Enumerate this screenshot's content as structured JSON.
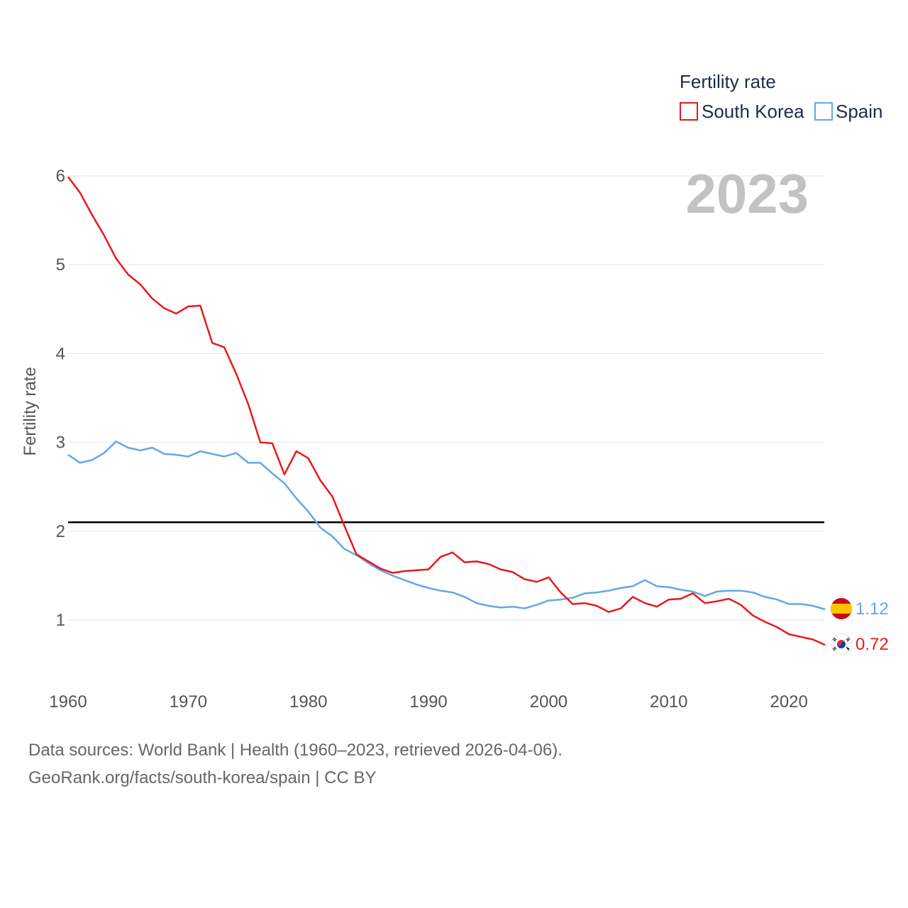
{
  "chart_data": {
    "type": "line",
    "legend_title": "Fertility rate",
    "ylabel": "Fertility rate",
    "year_label": "2023",
    "xlim": [
      1960,
      2023
    ],
    "ylim": [
      0.5,
      6.0
    ],
    "x_ticks": [
      1960,
      1970,
      1980,
      1990,
      2000,
      2010,
      2020
    ],
    "y_ticks": [
      1,
      2,
      3,
      4,
      5,
      6
    ],
    "reference_line": {
      "y": 2.1,
      "color": "#000000"
    },
    "x": [
      1960,
      1961,
      1962,
      1963,
      1964,
      1965,
      1966,
      1967,
      1968,
      1969,
      1970,
      1971,
      1972,
      1973,
      1974,
      1975,
      1976,
      1977,
      1978,
      1979,
      1980,
      1981,
      1982,
      1983,
      1984,
      1985,
      1986,
      1987,
      1988,
      1989,
      1990,
      1991,
      1992,
      1993,
      1994,
      1995,
      1996,
      1997,
      1998,
      1999,
      2000,
      2001,
      2002,
      2003,
      2004,
      2005,
      2006,
      2007,
      2008,
      2009,
      2010,
      2011,
      2012,
      2013,
      2014,
      2015,
      2016,
      2017,
      2018,
      2019,
      2020,
      2021,
      2022,
      2023
    ],
    "series": [
      {
        "name": "South Korea",
        "color": "#e8191c",
        "end_label": "0.72",
        "values": [
          5.99,
          5.81,
          5.56,
          5.33,
          5.07,
          4.89,
          4.78,
          4.62,
          4.51,
          4.45,
          4.53,
          4.54,
          4.12,
          4.07,
          3.77,
          3.43,
          3.0,
          2.99,
          2.64,
          2.9,
          2.82,
          2.57,
          2.39,
          2.06,
          1.74,
          1.66,
          1.58,
          1.53,
          1.55,
          1.56,
          1.57,
          1.71,
          1.76,
          1.65,
          1.66,
          1.63,
          1.57,
          1.54,
          1.46,
          1.43,
          1.48,
          1.31,
          1.18,
          1.19,
          1.16,
          1.09,
          1.13,
          1.26,
          1.19,
          1.15,
          1.23,
          1.24,
          1.3,
          1.19,
          1.21,
          1.24,
          1.17,
          1.05,
          0.98,
          0.92,
          0.84,
          0.81,
          0.78,
          0.72
        ]
      },
      {
        "name": "Spain",
        "color": "#63a7e8",
        "end_label": "1.12",
        "values": [
          2.86,
          2.77,
          2.8,
          2.88,
          3.01,
          2.94,
          2.91,
          2.94,
          2.87,
          2.86,
          2.84,
          2.9,
          2.87,
          2.84,
          2.88,
          2.77,
          2.77,
          2.65,
          2.54,
          2.37,
          2.22,
          2.04,
          1.94,
          1.8,
          1.73,
          1.64,
          1.56,
          1.5,
          1.45,
          1.4,
          1.36,
          1.33,
          1.31,
          1.26,
          1.19,
          1.16,
          1.14,
          1.15,
          1.13,
          1.17,
          1.22,
          1.23,
          1.25,
          1.3,
          1.31,
          1.33,
          1.36,
          1.38,
          1.45,
          1.38,
          1.37,
          1.34,
          1.32,
          1.27,
          1.32,
          1.33,
          1.33,
          1.31,
          1.26,
          1.23,
          1.18,
          1.18,
          1.16,
          1.12
        ]
      }
    ]
  },
  "footer": {
    "line1": "Data sources: World Bank | Health (1960–2023, retrieved 2026-04-06).",
    "line2": "GeoRank.org/facts/south-korea/spain | CC BY"
  }
}
